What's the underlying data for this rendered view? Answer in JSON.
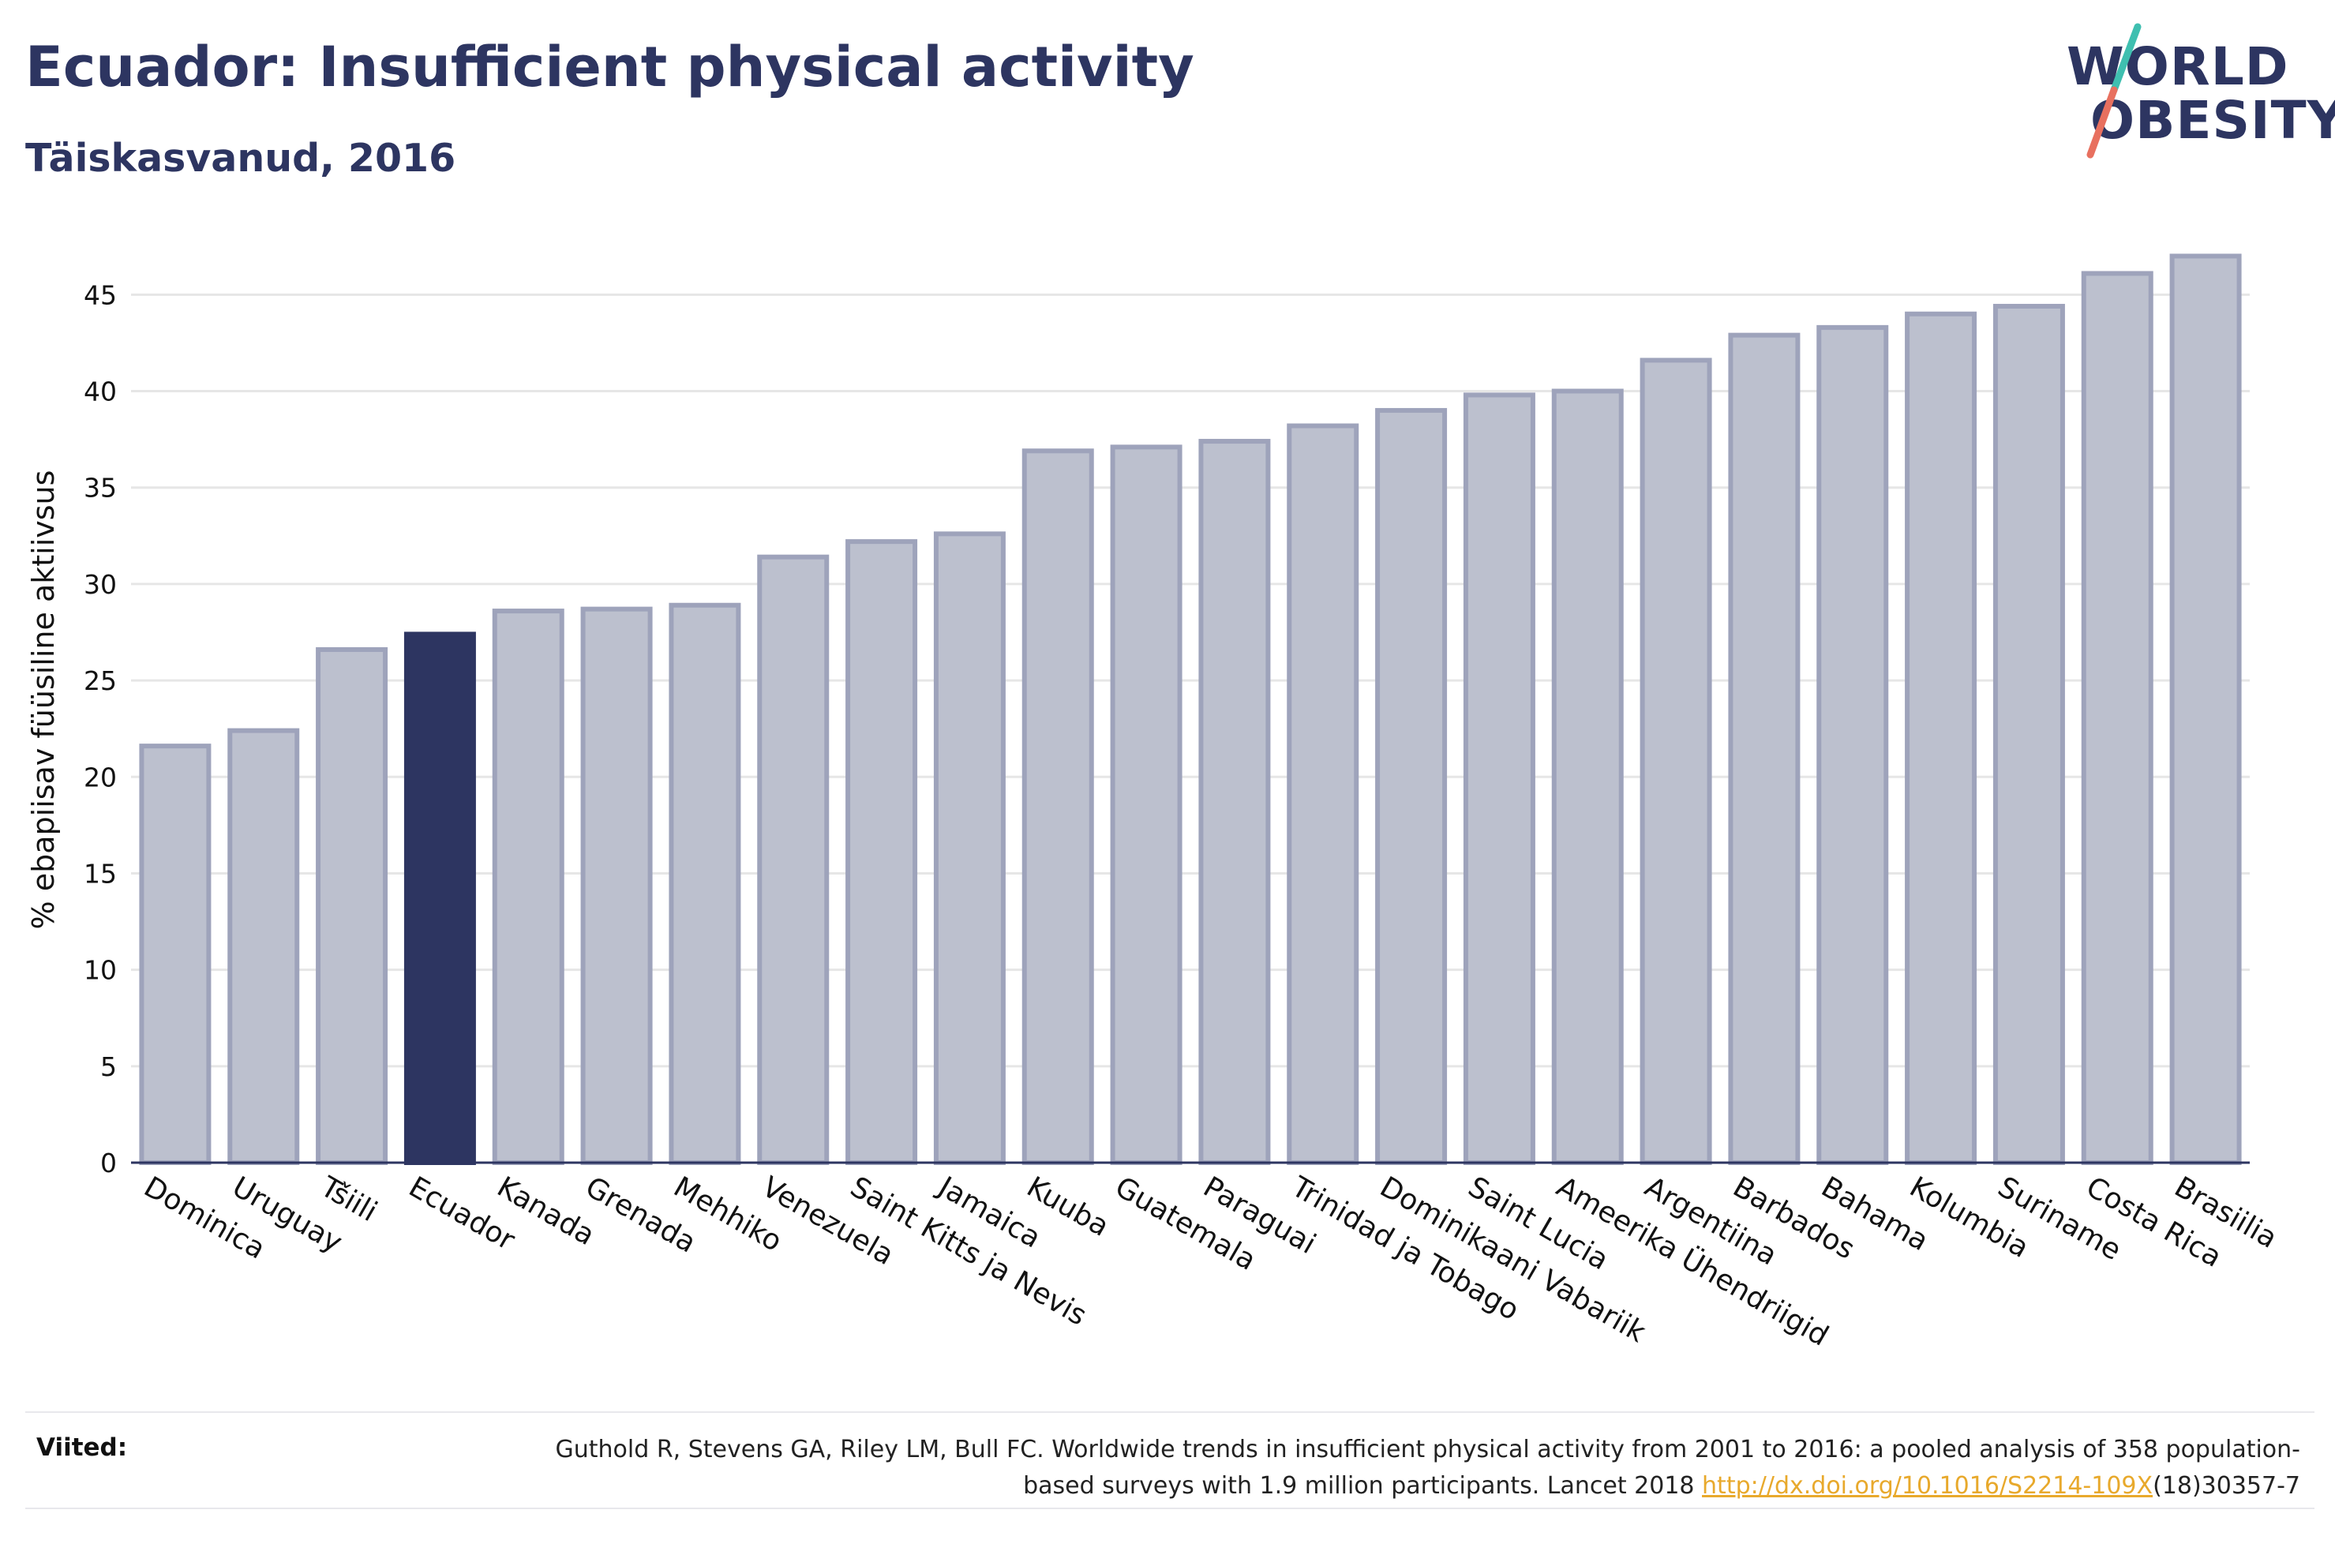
{
  "header": {
    "title": "Ecuador: Insufficient physical activity",
    "subtitle": "Täiskasvanud, 2016"
  },
  "logo": {
    "line1": "WORLD",
    "line2": "OBESITY",
    "colors": {
      "text": "#2d3561",
      "slash_top": "#3fbfb0",
      "slash_bottom": "#e8705f"
    }
  },
  "chart_data": {
    "type": "bar",
    "ylabel": "% ebapiisav füüsiline aktiivsus",
    "xlabel": "",
    "ylim": [
      0,
      48
    ],
    "yticks": [
      0,
      5,
      10,
      15,
      20,
      25,
      30,
      35,
      40,
      45
    ],
    "grid": true,
    "highlight": "Ecuador",
    "colors": {
      "default_fill": "#bcc0ce",
      "default_stroke": "#9ea3bb",
      "highlight_fill": "#2d3561",
      "grid": "#e6e6e6",
      "axis": "#2d3561"
    },
    "categories": [
      "Dominica",
      "Uruguay",
      "Tšiili",
      "Ecuador",
      "Kanada",
      "Grenada",
      "Mehhiko",
      "Venezuela",
      "Saint Kitts ja Nevis",
      "Jamaica",
      "Kuuba",
      "Guatemala",
      "Paraguai",
      "Trinidad ja Tobago",
      "Dominikaani Vabariik",
      "Saint Lucia",
      "Ameerika Ühendriigid",
      "Argentiina",
      "Barbados",
      "Bahama",
      "Kolumbia",
      "Suriname",
      "Costa Rica",
      "Brasiilia"
    ],
    "values": [
      21.6,
      22.4,
      26.6,
      27.4,
      28.6,
      28.7,
      28.9,
      31.4,
      32.2,
      32.6,
      36.9,
      37.1,
      37.4,
      38.2,
      39.0,
      39.8,
      40.0,
      41.6,
      42.9,
      43.3,
      44.0,
      44.4,
      46.1,
      47.0
    ]
  },
  "footer": {
    "refs_label": "Viited:",
    "refs_text_before": "Guthold R, Stevens GA, Riley LM, Bull FC. Worldwide trends in insufficient physical activity from 2001 to 2016: a pooled analysis of 358 population-based surveys with 1.9 million participants. Lancet 2018 ",
    "refs_link": "http://dx.doi.org/10.1016/S2214-109X",
    "refs_text_after": "(18)30357-7"
  }
}
